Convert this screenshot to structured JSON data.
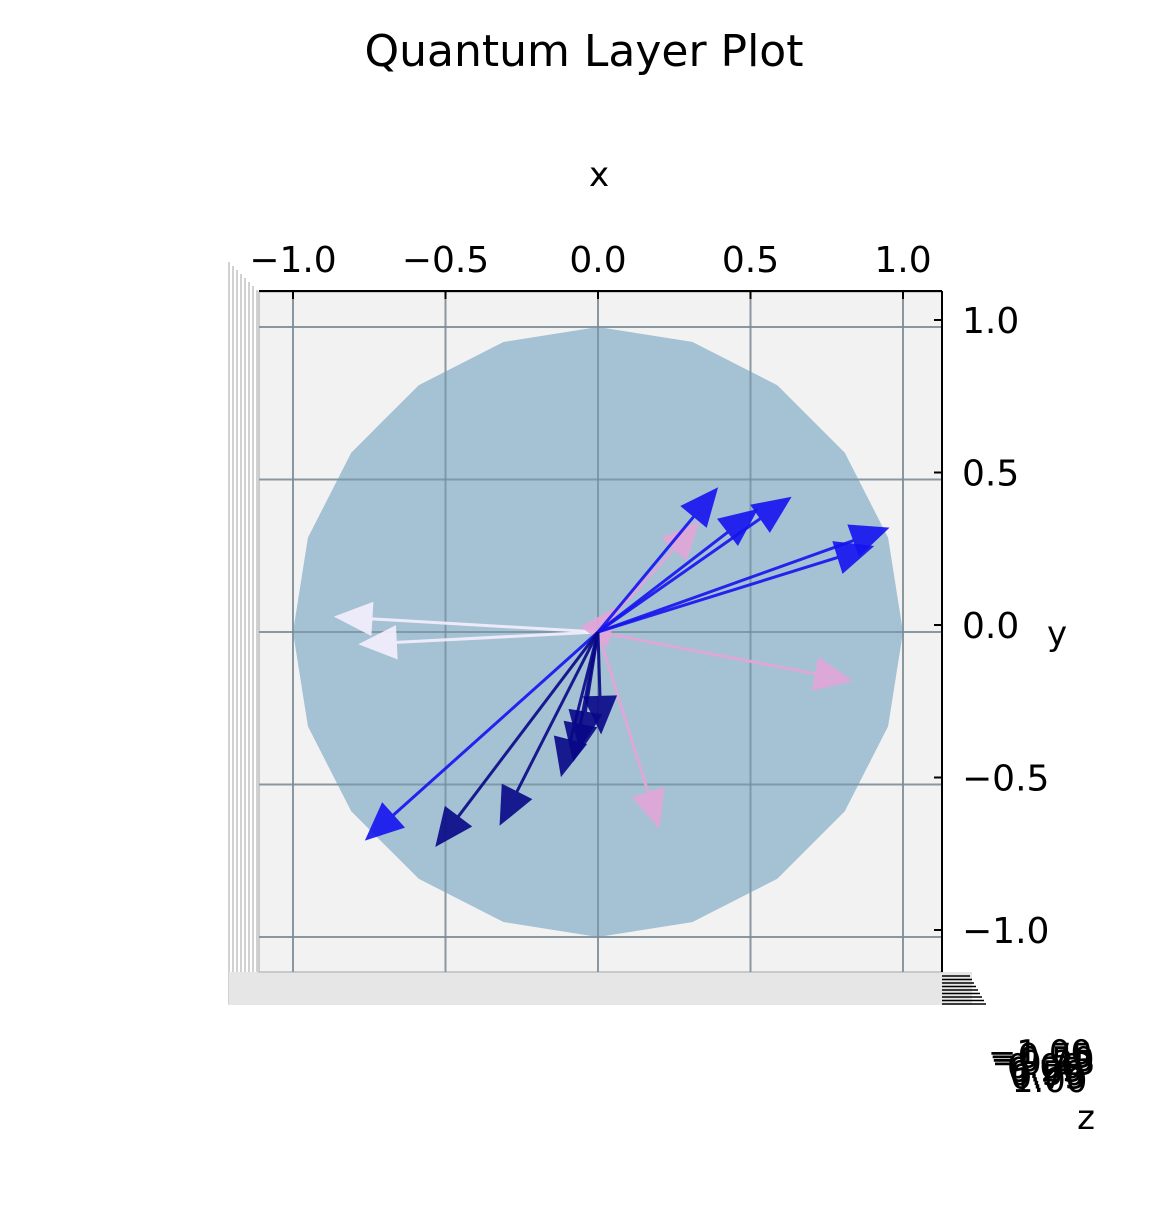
{
  "chart_data": {
    "type": "scatter",
    "subtype": "3d-quiver-on-bloch-sphere",
    "title": "Quantum Layer Plot",
    "xlabel": "x",
    "ylabel": "y",
    "zlabel": "z",
    "xticks": [
      "−1.0",
      "−0.5",
      "0.0",
      "0.5",
      "1.0"
    ],
    "yticks": [
      "1.0",
      "0.5",
      "0.0",
      "−0.5",
      "−1.0"
    ],
    "zticks": [
      "−1.00",
      "−0.75",
      "−0.50",
      "−0.25",
      "0.00",
      "0.25",
      "0.50",
      "0.75",
      "1.00"
    ],
    "xlim": [
      -1.1,
      1.1
    ],
    "ylim": [
      -1.1,
      1.1
    ],
    "view": "top-down (looking along z)",
    "grid": true,
    "sphere": {
      "radius": 1.0,
      "color": "#8fb3cc"
    },
    "series": [
      {
        "color": "#f5f0ff",
        "vectors": [
          [
            -0.86,
            0.05
          ],
          [
            -0.78,
            -0.04
          ]
        ]
      },
      {
        "color": "#e3a6d9",
        "vectors": [
          [
            0.33,
            0.36
          ],
          [
            0.83,
            -0.16
          ],
          [
            0.2,
            -0.64
          ],
          [
            0.06,
            0.08
          ]
        ]
      },
      {
        "color": "#1414f0",
        "vectors": [
          [
            0.39,
            0.47
          ],
          [
            0.63,
            0.44
          ],
          [
            0.95,
            0.34
          ],
          [
            0.9,
            0.28
          ],
          [
            -0.76,
            -0.68
          ],
          [
            0.52,
            0.4
          ]
        ]
      },
      {
        "color": "#080888",
        "vectors": [
          [
            -0.53,
            -0.7
          ],
          [
            -0.32,
            -0.63
          ],
          [
            -0.12,
            -0.47
          ],
          [
            0.01,
            -0.33
          ],
          [
            -0.06,
            -0.38
          ],
          [
            -0.08,
            -0.42
          ]
        ]
      }
    ]
  }
}
